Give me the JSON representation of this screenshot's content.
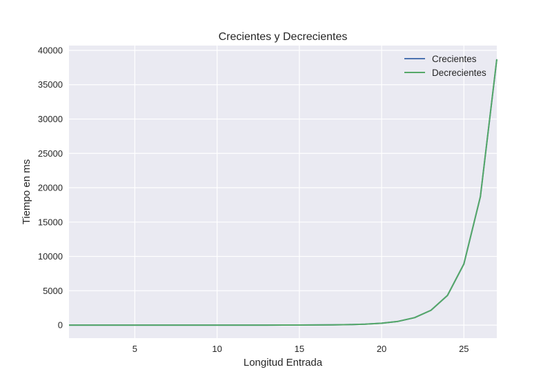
{
  "chart_data": {
    "type": "line",
    "title": "Crecientes y Decrecientes",
    "xlabel": "Longitud Entrada",
    "ylabel": "Tiempo en ms",
    "xlim": [
      1,
      27
    ],
    "ylim": [
      -1900,
      40700
    ],
    "x_ticks": [
      5,
      10,
      15,
      20,
      25
    ],
    "y_ticks": [
      0,
      5000,
      10000,
      15000,
      20000,
      25000,
      30000,
      35000,
      40000
    ],
    "grid": true,
    "legend_position": "top-right",
    "x": [
      1,
      2,
      3,
      4,
      5,
      6,
      7,
      8,
      9,
      10,
      11,
      12,
      13,
      14,
      15,
      16,
      17,
      18,
      19,
      20,
      21,
      22,
      23,
      24,
      25,
      26,
      27
    ],
    "series": [
      {
        "name": "Crecientes",
        "color": "#4C72B0",
        "values": [
          0,
          0,
          0,
          0,
          0,
          0,
          0,
          0,
          0,
          0,
          0,
          1,
          2,
          4,
          8,
          17,
          34,
          67,
          135,
          270,
          540,
          1080,
          2160,
          4320,
          8900,
          18700,
          38700
        ]
      },
      {
        "name": "Decrecientes",
        "color": "#55A868",
        "values": [
          0,
          0,
          0,
          0,
          0,
          0,
          0,
          0,
          0,
          0,
          0,
          1,
          2,
          4,
          8,
          17,
          34,
          67,
          135,
          270,
          540,
          1080,
          2160,
          4320,
          8900,
          18700,
          38700
        ]
      }
    ]
  }
}
